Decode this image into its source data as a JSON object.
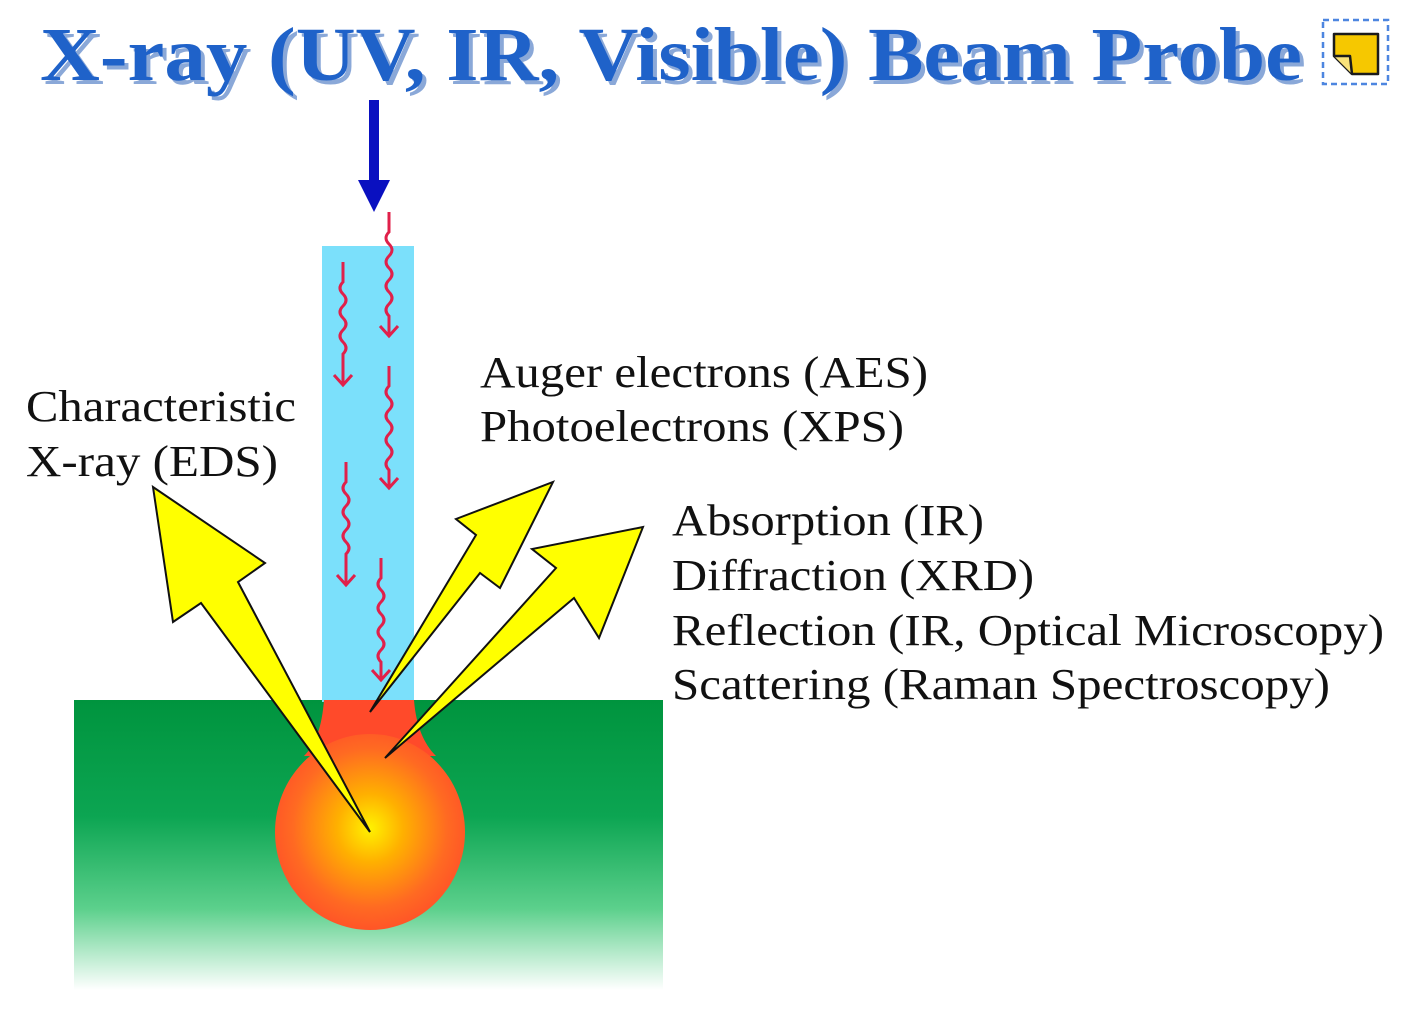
{
  "title": "X-ray (UV, IR, Visible) Beam Probe",
  "labels": {
    "characteristic_line1": "Characteristic",
    "characteristic_line2": "X-ray (EDS)",
    "auger": "Auger electrons (AES)",
    "photoelectrons": "Photoelectrons (XPS)",
    "absorption": "Absorption (IR)",
    "diffraction": "Diffraction (XRD)",
    "reflection": "Reflection (IR, Optical Microscopy)",
    "scattering": "Scattering (Raman Spectroscopy)"
  },
  "icons": {
    "incident_beam": "down-arrow-icon",
    "photon_waves": "wavy-photon-arrow-icon",
    "emission_arrows": "emission-arrow-icon",
    "note": "sticky-note-icon"
  },
  "colors": {
    "title": "#1f62c9",
    "beam": "#7be0fb",
    "sample": "#00943e",
    "interaction_volume": "#ff5a2a",
    "emission_arrow": "#ffff00",
    "photon_wave": "#e0204a",
    "incident_arrow": "#0a10c0",
    "note": "#f6c800"
  }
}
